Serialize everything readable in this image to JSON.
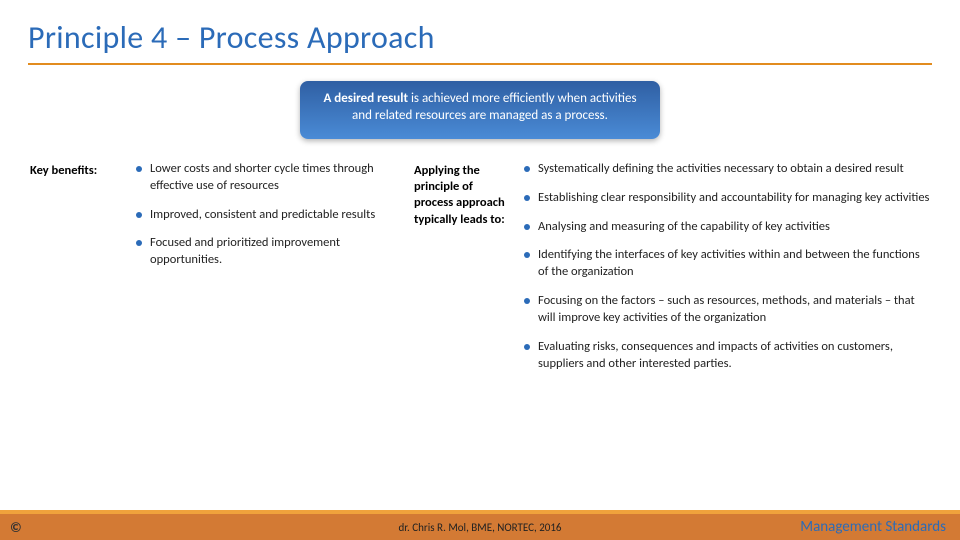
{
  "title": "Principle 4 – Process Approach",
  "title_color": "#2b6bb8",
  "underline_color": "#e28c1f",
  "callout": {
    "lead": "A desired result",
    "rest": " is achieved more efficiently when activities and related resources are managed as a process.",
    "bg_gradient_top": "#2f5fa3",
    "bg_gradient_bottom": "#4a8bd6"
  },
  "left_label": "Key benefits:",
  "left_bullets": [
    "Lower costs and shorter cycle times through effective use of resources",
    "Improved, consistent and predictable results",
    "Focused and prioritized improvement opportunities."
  ],
  "right_label": "Applying the principle of process approach typically leads to:",
  "right_bullets": [
    "Systematically defining the activities necessary to obtain a desired result",
    "Establishing clear responsibility and accountability for managing key activities",
    "Analysing and measuring of the capability of key activities",
    "Identifying the interfaces of key activities within and between the functions of the organization",
    "Focusing on the factors – such as resources, methods, and materials – that will improve key activities of the organization",
    "Evaluating risks, consequences and impacts of activities on customers, suppliers and other interested parties."
  ],
  "bullet_color": "#2b6bb8",
  "footer": {
    "bar_bg": "#d37a34",
    "strip_bg": "#f0a23c",
    "copy": "©",
    "center": "dr. Chris R. Mol, BME, NORTEC, 2016",
    "right": "Management Standards",
    "right_color": "#2b6bb8"
  }
}
